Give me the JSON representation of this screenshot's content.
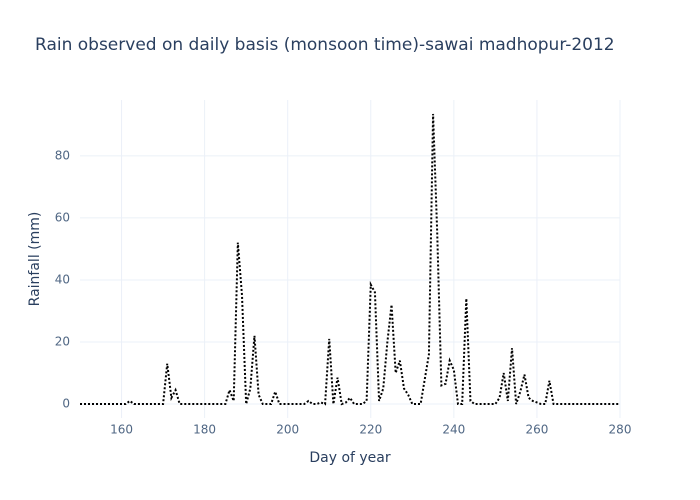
{
  "chart_data": {
    "type": "line",
    "title": "Rain observed on daily basis (monsoon time)-sawai madhopur-2012",
    "x_label": "Day of year",
    "y_label": "Rainfall (mm)",
    "x": [
      150,
      151,
      152,
      153,
      154,
      155,
      156,
      157,
      158,
      159,
      160,
      161,
      162,
      163,
      164,
      165,
      166,
      167,
      168,
      169,
      170,
      171,
      172,
      173,
      174,
      175,
      176,
      177,
      178,
      179,
      180,
      181,
      182,
      183,
      184,
      185,
      186,
      187,
      188,
      189,
      190,
      191,
      192,
      193,
      194,
      195,
      196,
      197,
      198,
      199,
      200,
      201,
      202,
      203,
      204,
      205,
      206,
      207,
      208,
      209,
      210,
      211,
      212,
      213,
      214,
      215,
      216,
      217,
      218,
      219,
      220,
      221,
      222,
      223,
      224,
      225,
      226,
      227,
      228,
      229,
      230,
      231,
      232,
      233,
      234,
      235,
      236,
      237,
      238,
      239,
      240,
      241,
      242,
      243,
      244,
      245,
      246,
      247,
      248,
      249,
      250,
      251,
      252,
      253,
      254,
      255,
      256,
      257,
      258,
      259,
      260,
      261,
      262,
      263,
      264,
      265,
      266,
      267,
      268,
      269,
      270,
      271,
      272,
      273,
      274,
      275,
      276,
      277,
      278,
      279,
      280
    ],
    "series": [
      {
        "color": "#000000",
        "dash": "dot",
        "values": [
          0,
          0,
          0,
          0,
          0,
          0,
          0,
          0,
          0,
          0,
          0,
          0,
          1,
          0,
          0,
          0,
          0,
          0,
          0,
          0,
          0,
          13,
          2,
          4.5,
          0,
          0,
          0,
          0,
          0,
          0,
          0,
          0,
          0,
          0,
          0,
          0,
          4.5,
          1,
          52,
          35,
          0,
          5,
          22,
          3,
          0,
          0,
          0,
          4,
          0,
          0,
          0,
          0,
          0,
          0,
          0,
          1,
          0,
          0,
          0.5,
          0,
          21,
          0,
          8.5,
          0,
          0.5,
          2,
          0,
          0,
          0,
          1,
          38.5,
          36,
          1,
          5,
          20,
          32,
          10,
          14,
          5,
          3,
          0,
          0,
          0,
          8,
          16,
          93.5,
          55,
          6,
          6.5,
          14,
          11,
          0,
          0,
          34,
          1,
          0,
          0,
          0,
          0,
          0,
          0,
          2,
          10,
          1,
          18,
          0,
          4,
          9.5,
          2,
          1,
          0.5,
          0,
          0,
          7.5,
          0,
          0,
          0,
          0,
          0,
          0,
          0,
          0,
          0,
          0,
          0,
          0,
          0,
          0,
          0,
          0,
          0
        ]
      }
    ],
    "xlim": [
      150,
      280
    ],
    "ylim": [
      -4.5,
      98
    ],
    "xticks": [
      160,
      180,
      200,
      220,
      240,
      260,
      280
    ],
    "yticks": [
      0,
      20,
      40,
      60,
      80
    ],
    "grid": true
  }
}
